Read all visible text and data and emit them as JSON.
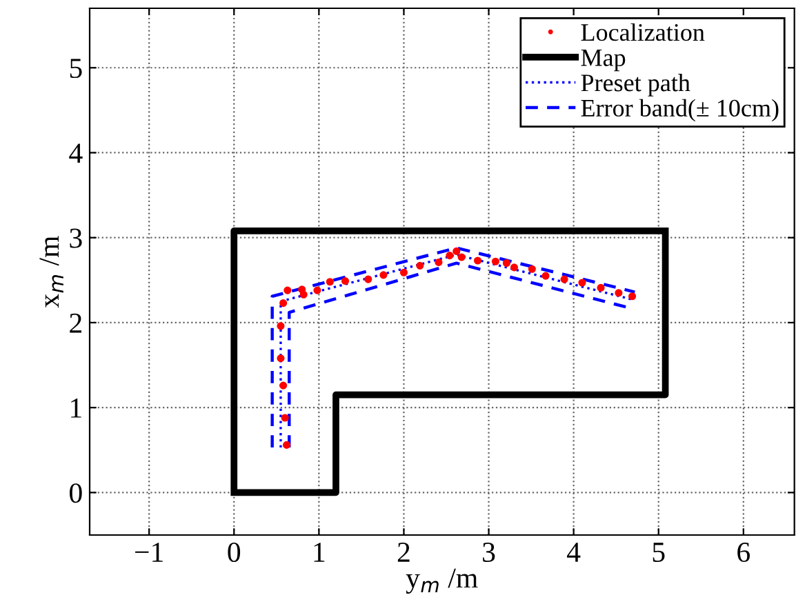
{
  "chart_data": {
    "type": "line",
    "xlabel": "y$_{m}$ /m",
    "ylabel": "x$_{m}$ /m",
    "xlim": [
      -1.7,
      6.6
    ],
    "ylim": [
      -0.5,
      5.7
    ],
    "xticks": [
      -1,
      0,
      1,
      2,
      3,
      4,
      5,
      6
    ],
    "yticks": [
      0,
      1,
      2,
      3,
      4,
      5
    ],
    "grid": true,
    "legend": "top right",
    "series": [
      {
        "name": "Localization",
        "type": "scatter",
        "marker": "circle",
        "color": "#ff0000",
        "x": [
          0.62,
          0.6,
          0.58,
          0.55,
          0.55,
          0.58,
          0.63,
          0.8,
          0.82,
          0.98,
          1.13,
          1.31,
          1.58,
          1.76,
          2.0,
          2.19,
          2.41,
          2.54,
          2.62,
          2.68,
          2.87,
          3.08,
          3.21,
          3.3,
          3.51,
          3.67,
          3.89,
          4.1,
          4.32,
          4.53,
          4.69
        ],
        "values": [
          0.56,
          0.88,
          1.26,
          1.58,
          1.96,
          2.23,
          2.38,
          2.39,
          2.33,
          2.38,
          2.48,
          2.49,
          2.51,
          2.56,
          2.59,
          2.67,
          2.71,
          2.79,
          2.84,
          2.77,
          2.73,
          2.72,
          2.7,
          2.65,
          2.63,
          2.55,
          2.51,
          2.47,
          2.41,
          2.35,
          2.31
        ]
      },
      {
        "name": "Map",
        "line_style": "solid",
        "color": "#000000",
        "x": [
          0,
          1.2,
          1.2,
          5.08,
          5.08,
          null,
          0,
          0,
          5.08
        ],
        "values": [
          0,
          0,
          1.15,
          1.15,
          3.08,
          null,
          0,
          3.08,
          3.08
        ]
      },
      {
        "name": "Preset path",
        "line_style": "dotted",
        "color": "#0000ff",
        "x": [
          0.55,
          0.55,
          2.62,
          4.7
        ],
        "values": [
          0.53,
          2.25,
          2.8,
          2.27
        ]
      },
      {
        "name": "Error band(± 10cm)",
        "line_style": "dashed",
        "color": "#0000ff",
        "x": [
          0.45,
          0.45,
          2.62,
          4.72,
          null,
          0.65,
          0.65,
          2.62,
          4.67
        ],
        "values": [
          0.53,
          2.31,
          2.88,
          2.36,
          null,
          0.53,
          2.12,
          2.7,
          2.17
        ]
      }
    ]
  }
}
